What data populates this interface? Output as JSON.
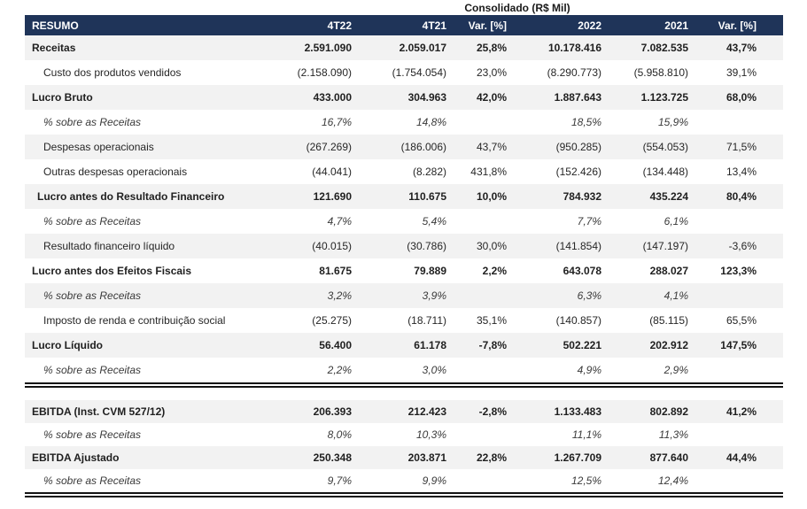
{
  "title": "Consolidado (R$ Mil)",
  "colors": {
    "header_bg": "#1f3459",
    "header_text": "#ffffff",
    "stripe": "#f2f2f2",
    "body_text": "#262626",
    "rule": "#141414"
  },
  "table": {
    "header": [
      "RESUMO",
      "4T22",
      "4T21",
      "Var. [%]",
      "2022",
      "2021",
      "Var. [%]"
    ],
    "sections": [
      {
        "rows": [
          {
            "label": "Receitas",
            "style": "bold",
            "values": [
              "2.591.090",
              "2.059.017",
              "25,8%",
              "10.178.416",
              "7.082.535",
              "43,7%"
            ]
          },
          {
            "label": "Custo dos produtos vendidos",
            "style": "indent",
            "values": [
              "(2.158.090)",
              "(1.754.054)",
              "23,0%",
              "(8.290.773)",
              "(5.958.810)",
              "39,1%"
            ]
          },
          {
            "label": "Lucro Bruto",
            "style": "bold",
            "values": [
              "433.000",
              "304.963",
              "42,0%",
              "1.887.643",
              "1.123.725",
              "68,0%"
            ]
          },
          {
            "label": "% sobre as Receitas",
            "style": "pct",
            "values": [
              "16,7%",
              "14,8%",
              "",
              "18,5%",
              "15,9%",
              ""
            ]
          },
          {
            "label": "Despesas operacionais",
            "style": "indent",
            "values": [
              "(267.269)",
              "(186.006)",
              "43,7%",
              "(950.285)",
              "(554.053)",
              "71,5%"
            ]
          },
          {
            "label": "Outras despesas operacionais",
            "style": "indent",
            "values": [
              "(44.041)",
              "(8.282)",
              "431,8%",
              "(152.426)",
              "(134.448)",
              "13,4%"
            ]
          },
          {
            "label": "Lucro antes do Resultado Financeiro",
            "style": "bold-indent",
            "values": [
              "121.690",
              "110.675",
              "10,0%",
              "784.932",
              "435.224",
              "80,4%"
            ]
          },
          {
            "label": "% sobre as Receitas",
            "style": "pct",
            "values": [
              "4,7%",
              "5,4%",
              "",
              "7,7%",
              "6,1%",
              ""
            ]
          },
          {
            "label": "Resultado financeiro líquido",
            "style": "indent",
            "values": [
              "(40.015)",
              "(30.786)",
              "30,0%",
              "(141.854)",
              "(147.197)",
              "-3,6%"
            ]
          },
          {
            "label": "Lucro antes dos Efeitos Fiscais",
            "style": "bold",
            "values": [
              "81.675",
              "79.889",
              "2,2%",
              "643.078",
              "288.027",
              "123,3%"
            ]
          },
          {
            "label": "% sobre as Receitas",
            "style": "pct",
            "values": [
              "3,2%",
              "3,9%",
              "",
              "6,3%",
              "4,1%",
              ""
            ]
          },
          {
            "label": "Imposto de renda e contribuição social",
            "style": "indent",
            "values": [
              "(25.275)",
              "(18.711)",
              "35,1%",
              "(140.857)",
              "(85.115)",
              "65,5%"
            ]
          },
          {
            "label": "Lucro Líquido",
            "style": "bold",
            "values": [
              "56.400",
              "61.178",
              "-7,8%",
              "502.221",
              "202.912",
              "147,5%"
            ]
          },
          {
            "label": "% sobre as Receitas",
            "style": "pct",
            "values": [
              "2,2%",
              "3,0%",
              "",
              "4,9%",
              "2,9%",
              ""
            ]
          }
        ]
      },
      {
        "rows": [
          {
            "label": "EBITDA (Inst. CVM 527/12)",
            "style": "bold",
            "values": [
              "206.393",
              "212.423",
              "-2,8%",
              "1.133.483",
              "802.892",
              "41,2%"
            ]
          },
          {
            "label": "% sobre as Receitas",
            "style": "pct",
            "values": [
              "8,0%",
              "10,3%",
              "",
              "11,1%",
              "11,3%",
              ""
            ]
          },
          {
            "label": "EBITDA Ajustado",
            "style": "bold",
            "values": [
              "250.348",
              "203.871",
              "22,8%",
              "1.267.709",
              "877.640",
              "44,4%"
            ]
          },
          {
            "label": "% sobre as Receitas",
            "style": "pct",
            "values": [
              "9,7%",
              "9,9%",
              "",
              "12,5%",
              "12,4%",
              ""
            ]
          }
        ]
      }
    ]
  }
}
